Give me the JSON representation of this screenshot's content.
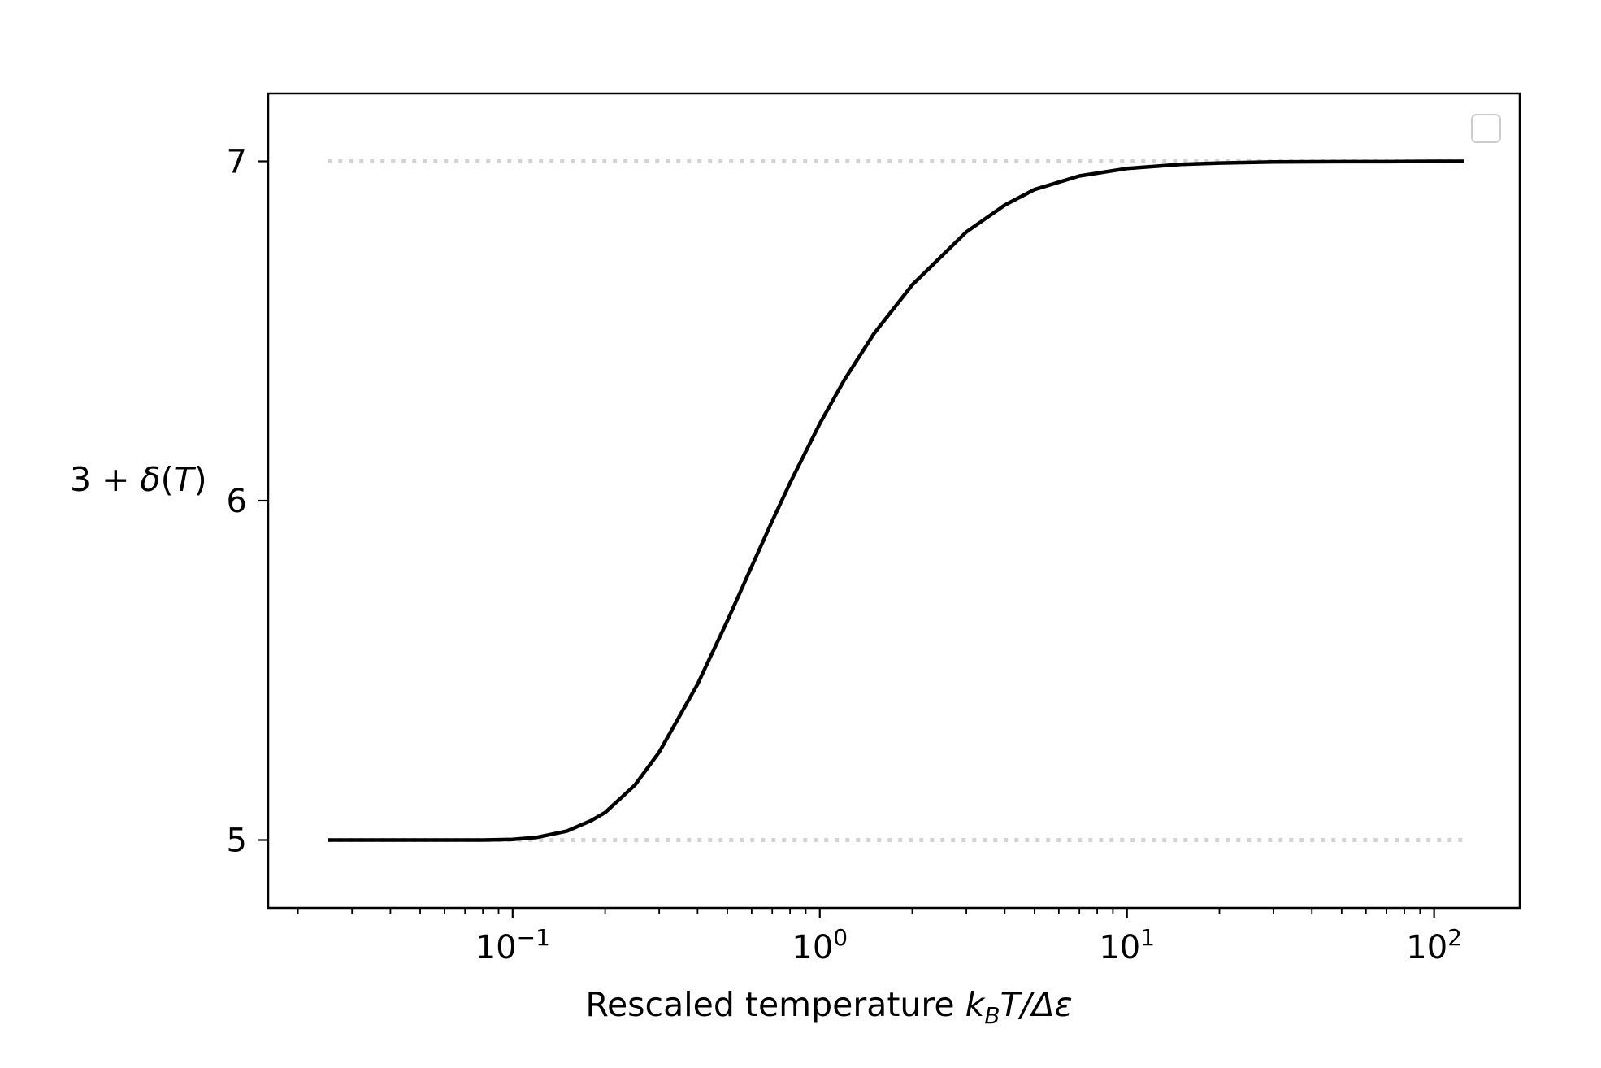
{
  "chart_data": {
    "type": "line",
    "x_scale": "log",
    "xlabel_prefix": "Rescaled temperature ",
    "xlabel_k": "k",
    "xlabel_sub": "B",
    "xlabel_rest": "T/Δε",
    "ylabel_prefix": "3 + ",
    "ylabel_delta": "δ",
    "ylabel_open": "(",
    "ylabel_T": "T",
    "ylabel_close": ")",
    "xlim": [
      0.016,
      190
    ],
    "ylim": [
      4.8,
      7.2
    ],
    "x_ticks": [
      {
        "value": 0.1,
        "base": "10",
        "exp": "−1"
      },
      {
        "value": 1,
        "base": "10",
        "exp": "0"
      },
      {
        "value": 10,
        "base": "10",
        "exp": "1"
      },
      {
        "value": 100,
        "base": "10",
        "exp": "2"
      }
    ],
    "y_ticks": [
      {
        "value": 5,
        "label": "5"
      },
      {
        "value": 6,
        "label": "6"
      },
      {
        "value": 7,
        "label": "7"
      }
    ],
    "reference_lines": [
      {
        "y": 7,
        "x_range": [
          0.025,
          125
        ],
        "color": "#d3d3d3",
        "style": "dotted"
      },
      {
        "y": 5,
        "x_range": [
          0.025,
          125
        ],
        "color": "#d3d3d3",
        "style": "dotted"
      }
    ],
    "series": [
      {
        "color": "#000000",
        "x": [
          0.025,
          0.05,
          0.08,
          0.1,
          0.12,
          0.15,
          0.18,
          0.2,
          0.25,
          0.3,
          0.4,
          0.5,
          0.6,
          0.7,
          0.8,
          1.0,
          1.2,
          1.5,
          2.0,
          3.0,
          4.0,
          5.0,
          7.0,
          10.0,
          15.0,
          20.0,
          30.0,
          50.0,
          70.0,
          100.0,
          125.0
        ],
        "y": [
          5.0,
          5.0,
          5.0,
          5.002,
          5.008,
          5.026,
          5.057,
          5.081,
          5.162,
          5.259,
          5.459,
          5.646,
          5.806,
          5.94,
          6.052,
          6.227,
          6.355,
          6.492,
          6.636,
          6.792,
          6.871,
          6.917,
          6.957,
          6.979,
          6.991,
          6.995,
          6.998,
          6.999,
          6.999,
          7.0,
          7.0
        ]
      }
    ],
    "legend": {
      "position": "top-right",
      "entries": []
    },
    "grid": false
  }
}
